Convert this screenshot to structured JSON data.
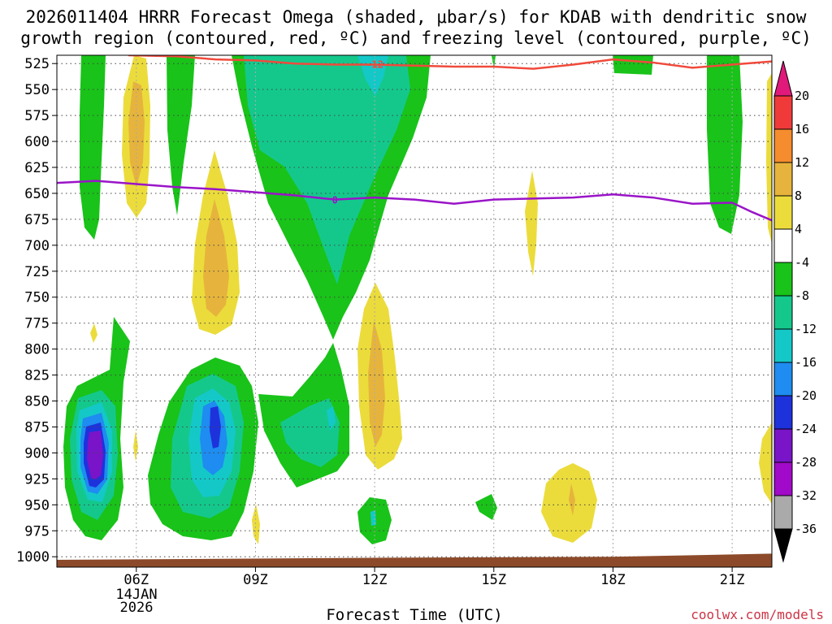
{
  "chart_data": {
    "type": "heatmap",
    "title_lines": [
      "2026011404 HRRR Forecast Omega (shaded, μbar/s) for KDAB with dendritic snow",
      "growth region (contoured, red, ºC) and freezing level (contoured, purple, ºC)"
    ],
    "xlabel": "Forecast Time (UTC)",
    "credit": "coolwx.com/models",
    "x_range_hours": [
      4.0,
      22.0
    ],
    "x_ticks": [
      {
        "hour": 6,
        "label": "06Z"
      },
      {
        "hour": 9,
        "label": "09Z"
      },
      {
        "hour": 12,
        "label": "12Z"
      },
      {
        "hour": 15,
        "label": "15Z"
      },
      {
        "hour": 18,
        "label": "18Z"
      },
      {
        "hour": 21,
        "label": "21Z"
      }
    ],
    "date_label": [
      "14JAN",
      "2026"
    ],
    "ylim_hpa": [
      517,
      1010
    ],
    "y_ticks": [
      525,
      550,
      575,
      600,
      625,
      650,
      675,
      700,
      725,
      750,
      775,
      800,
      825,
      850,
      875,
      900,
      925,
      950,
      975,
      1000
    ],
    "colorbar": {
      "labels": [
        "20",
        "16",
        "12",
        "8",
        "4",
        "-4",
        "-8",
        "-12",
        "-16",
        "-20",
        "-24",
        "-28",
        "-32",
        "-36"
      ],
      "colors": [
        "#f03a3a",
        "#f58c2d",
        "#e6b43c",
        "#ebdc3c",
        "#ffffff",
        "#19c319",
        "#14c88c",
        "#14c8c8",
        "#1e8cf0",
        "#1e32dc",
        "#7a14c8",
        "#a00ac8",
        "#aaaaaa"
      ],
      "top_arrow": "#e0197a",
      "bottom_arrow": "#000000"
    },
    "contour_colors": {
      "ascent_1": "#19c319",
      "ascent_2": "#14c88c",
      "ascent_3": "#14c8c8",
      "ascent_4": "#1e8cf0",
      "ascent_5": "#1e32dc",
      "ascent_6": "#7a14c8",
      "ascent_7": "#a00ac8",
      "descent_1": "#ebdc3c",
      "descent_2": "#e6b43c",
      "descent_3": "#f58c2d"
    },
    "dgz_line": {
      "color": "#f04a3c",
      "label": "-12",
      "points": [
        [
          5.8,
          517
        ],
        [
          7.0,
          518
        ],
        [
          8.0,
          521
        ],
        [
          9.0,
          522
        ],
        [
          10.0,
          525
        ],
        [
          11.0,
          526
        ],
        [
          12.0,
          526
        ],
        [
          13.0,
          527
        ],
        [
          14.0,
          528
        ],
        [
          15.0,
          528
        ],
        [
          16.0,
          530
        ],
        [
          17.0,
          526
        ],
        [
          18.0,
          521
        ],
        [
          19.0,
          524
        ],
        [
          20.0,
          529
        ],
        [
          21.0,
          526
        ],
        [
          22.0,
          523
        ]
      ]
    },
    "freezing_line": {
      "color": "#9a14c8",
      "label": "0",
      "points": [
        [
          4.0,
          640
        ],
        [
          5.0,
          638
        ],
        [
          6.0,
          641
        ],
        [
          7.0,
          644
        ],
        [
          8.0,
          646
        ],
        [
          9.0,
          649
        ],
        [
          10.0,
          652
        ],
        [
          11.0,
          656
        ],
        [
          12.0,
          654
        ],
        [
          13.0,
          656
        ],
        [
          14.0,
          660
        ],
        [
          15.0,
          656
        ],
        [
          16.0,
          655
        ],
        [
          17.0,
          654
        ],
        [
          18.0,
          651
        ],
        [
          19.0,
          654
        ],
        [
          20.0,
          660
        ],
        [
          21.0,
          659
        ],
        [
          21.5,
          668
        ],
        [
          22.0,
          676
        ]
      ]
    },
    "terrain": {
      "color": "#8c4a2a",
      "points": [
        [
          4.0,
          1003
        ],
        [
          12.0,
          1001
        ],
        [
          18.0,
          1000
        ],
        [
          22.0,
          997
        ]
      ]
    }
  }
}
